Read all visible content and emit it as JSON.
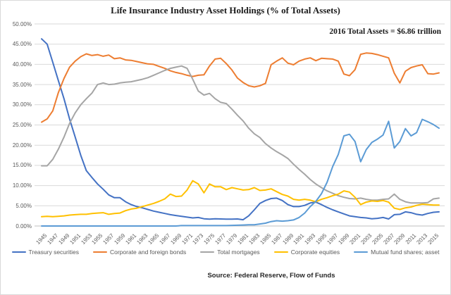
{
  "chart_data": {
    "type": "line",
    "title": "Life Insurance Industry Asset Holdings (% of Total Assets)",
    "annotation": "2016 Total Assets = $6.86 trillion",
    "source": "Source:  Federal Reserve,  Flow of Funds",
    "ylim": [
      0,
      50
    ],
    "y_tick_step": 5,
    "y_tick_labels": [
      "0.00%",
      "5.00%",
      "10.00%",
      "15.00%",
      "20.00%",
      "25.00%",
      "30.00%",
      "35.00%",
      "40.00%",
      "45.00%",
      "50.00%"
    ],
    "grid": "horizontal",
    "gridline_color": "#d9d9d9",
    "axis_text_color": "#595959",
    "legend_position": "bottom",
    "x": [
      1945,
      1946,
      1947,
      1948,
      1949,
      1950,
      1951,
      1952,
      1953,
      1954,
      1955,
      1956,
      1957,
      1958,
      1959,
      1960,
      1961,
      1962,
      1963,
      1964,
      1965,
      1966,
      1967,
      1968,
      1969,
      1970,
      1971,
      1972,
      1973,
      1974,
      1975,
      1976,
      1977,
      1978,
      1979,
      1980,
      1981,
      1982,
      1983,
      1984,
      1985,
      1986,
      1987,
      1988,
      1989,
      1990,
      1991,
      1992,
      1993,
      1994,
      1995,
      1996,
      1997,
      1998,
      1999,
      2000,
      2001,
      2002,
      2003,
      2004,
      2005,
      2006,
      2007,
      2008,
      2009,
      2010,
      2011,
      2012,
      2013,
      2014,
      2015,
      2016
    ],
    "x_tick_labels": [
      "1945",
      "1947",
      "1949",
      "1951",
      "1953",
      "1955",
      "1957",
      "1959",
      "1961",
      "1963",
      "1965",
      "1967",
      "1969",
      "1971",
      "1973",
      "1975",
      "1977",
      "1979",
      "1981",
      "1983",
      "1985",
      "1987",
      "1989",
      "1991",
      "1993",
      "1995",
      "1997",
      "1999",
      "2001",
      "2003",
      "2005",
      "2007",
      "2009",
      "2011",
      "2013",
      "2015"
    ],
    "series": [
      {
        "name": "Treasury securities",
        "color": "#4472C4",
        "values": [
          46.3,
          45.0,
          40.5,
          36.0,
          31.5,
          26.5,
          22.0,
          17.5,
          13.7,
          12.0,
          10.4,
          9.1,
          7.7,
          7.0,
          7.0,
          6.0,
          5.3,
          4.8,
          4.5,
          4.1,
          3.7,
          3.4,
          3.1,
          2.8,
          2.6,
          2.4,
          2.2,
          2.0,
          2.1,
          1.8,
          1.7,
          1.8,
          1.75,
          1.7,
          1.7,
          1.75,
          1.55,
          2.5,
          4.0,
          5.6,
          6.3,
          6.8,
          6.9,
          6.3,
          5.3,
          4.8,
          4.8,
          5.1,
          5.7,
          5.9,
          5.3,
          4.6,
          4.0,
          3.5,
          3.0,
          2.5,
          2.3,
          2.1,
          2.0,
          1.8,
          1.9,
          2.1,
          1.75,
          2.8,
          2.9,
          3.5,
          3.3,
          2.9,
          2.7,
          3.1,
          3.4,
          3.5
        ]
      },
      {
        "name": "Corporate and foreign bonds",
        "color": "#ED7D31",
        "values": [
          25.7,
          26.5,
          28.5,
          33.0,
          36.5,
          39.3,
          40.8,
          41.9,
          42.6,
          42.2,
          42.4,
          42.0,
          42.3,
          41.4,
          41.6,
          41.1,
          41.0,
          40.7,
          40.4,
          40.1,
          40.0,
          39.5,
          39.0,
          38.4,
          38.0,
          37.7,
          37.3,
          37.0,
          37.3,
          37.4,
          39.6,
          41.3,
          41.5,
          40.2,
          38.6,
          36.6,
          35.5,
          34.7,
          34.4,
          34.7,
          35.3,
          39.9,
          40.8,
          41.6,
          40.3,
          39.9,
          40.8,
          41.3,
          41.6,
          40.9,
          41.5,
          41.4,
          41.3,
          40.8,
          37.6,
          37.2,
          38.7,
          42.5,
          42.8,
          42.7,
          42.4,
          42.0,
          41.6,
          37.8,
          35.4,
          38.3,
          39.2,
          39.6,
          39.9,
          37.7,
          37.6,
          37.9
        ]
      },
      {
        "name": "Total mortgages",
        "color": "#A5A5A5",
        "values": [
          14.9,
          14.9,
          16.5,
          19.0,
          22.0,
          25.4,
          28.0,
          30.0,
          31.5,
          32.9,
          35.0,
          35.4,
          35.0,
          35.1,
          35.4,
          35.6,
          35.7,
          36.0,
          36.3,
          36.7,
          37.3,
          37.9,
          38.5,
          39.0,
          39.3,
          39.6,
          39.0,
          36.3,
          33.4,
          32.4,
          32.8,
          31.5,
          30.6,
          30.3,
          28.9,
          27.4,
          26.0,
          24.2,
          22.8,
          21.9,
          20.4,
          19.3,
          18.4,
          17.6,
          16.7,
          15.3,
          14.0,
          12.8,
          11.5,
          10.4,
          9.5,
          8.7,
          8.1,
          7.5,
          7.1,
          6.8,
          6.7,
          6.9,
          6.6,
          6.4,
          6.4,
          6.6,
          6.7,
          7.9,
          6.6,
          6.0,
          5.7,
          5.7,
          5.7,
          5.8,
          6.7,
          6.9
        ]
      },
      {
        "name": "Corporate equities",
        "color": "#FFC000",
        "values": [
          2.3,
          2.4,
          2.3,
          2.4,
          2.5,
          2.7,
          2.8,
          2.9,
          2.9,
          3.1,
          3.2,
          3.3,
          2.9,
          3.1,
          3.2,
          3.8,
          4.2,
          4.4,
          4.8,
          5.2,
          5.6,
          6.1,
          6.7,
          7.9,
          7.3,
          7.4,
          8.9,
          11.2,
          10.4,
          8.2,
          10.4,
          9.7,
          9.7,
          9.0,
          9.5,
          9.2,
          8.9,
          9.0,
          9.5,
          8.8,
          8.9,
          9.2,
          8.5,
          7.8,
          7.4,
          6.6,
          6.4,
          6.6,
          6.4,
          6.0,
          6.6,
          7.0,
          7.5,
          7.9,
          8.7,
          8.4,
          7.1,
          5.3,
          5.9,
          6.2,
          6.1,
          6.3,
          5.9,
          4.4,
          4.1,
          4.5,
          4.7,
          5.1,
          5.4,
          5.3,
          5.2,
          5.2
        ]
      },
      {
        "name": "Mutual fund shares; asset",
        "color": "#5B9BD5",
        "values": [
          0,
          0,
          0,
          0,
          0,
          0,
          0,
          0,
          0,
          0,
          0,
          0,
          0,
          0,
          0,
          0,
          0,
          0,
          0,
          0,
          0,
          0,
          0,
          0,
          0,
          0.1,
          0.1,
          0.1,
          0.1,
          0.1,
          0.1,
          0.1,
          0.1,
          0.1,
          0.15,
          0.2,
          0.25,
          0.3,
          0.3,
          0.5,
          0.7,
          1.1,
          1.3,
          1.2,
          1.3,
          1.5,
          2.1,
          3.2,
          4.8,
          6.1,
          8.0,
          10.8,
          14.7,
          17.7,
          22.3,
          22.7,
          20.9,
          15.9,
          18.9,
          20.7,
          21.5,
          22.5,
          25.9,
          19.3,
          20.9,
          24.1,
          22.3,
          23.1,
          26.4,
          25.8,
          25.1,
          24.2
        ]
      }
    ]
  }
}
